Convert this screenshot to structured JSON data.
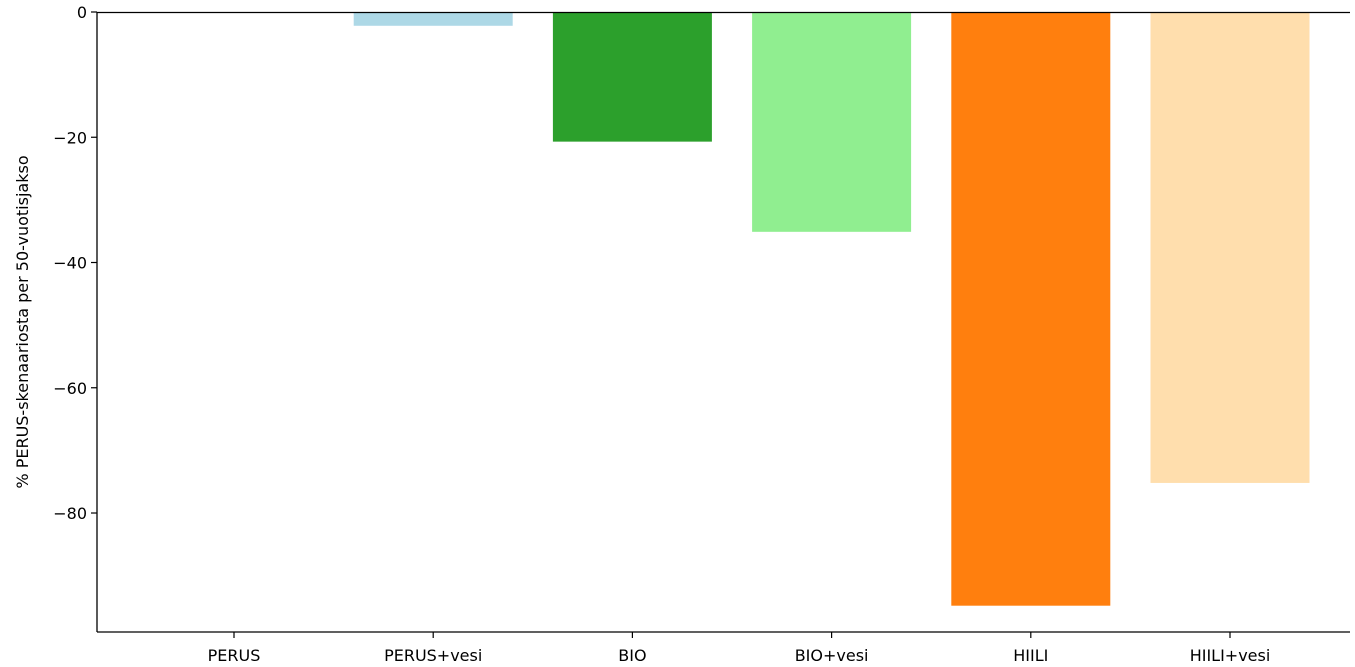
{
  "chart_data": {
    "type": "bar",
    "title": "",
    "xlabel": "",
    "ylabel": "% PERUS-skenaariosta per 50-vuotisjakso",
    "categories": [
      "PERUS",
      "PERUS+vesi",
      "BIO",
      "BIO+vesi",
      "HIILI",
      "HIILI+vesi"
    ],
    "values": [
      0,
      -2.2,
      -20.7,
      -35.1,
      -94.8,
      -75.2
    ],
    "colors": [
      "#add8e6",
      "#add8e6",
      "#2ca02c",
      "#90ee90",
      "#ff7f0e",
      "#ffdead"
    ],
    "ylim": [
      -99,
      0
    ],
    "yticks": [
      0,
      -20,
      -40,
      -60,
      -80
    ],
    "ytick_labels": [
      "0",
      "−20",
      "−40",
      "−60",
      "−80"
    ],
    "grid": false,
    "legend": "none"
  }
}
